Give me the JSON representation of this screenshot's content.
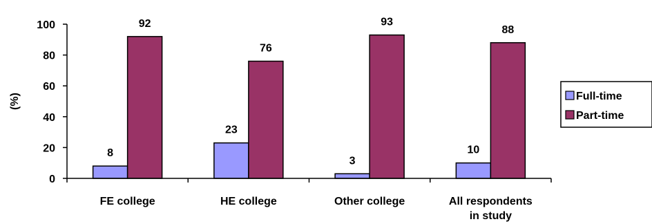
{
  "chart_data": {
    "type": "bar",
    "categories": [
      "FE college",
      "HE college",
      "Other college",
      "All respondents in study"
    ],
    "category_lines": [
      [
        "FE college"
      ],
      [
        "HE college"
      ],
      [
        "Other college"
      ],
      [
        "All respondents",
        "in study"
      ]
    ],
    "series": [
      {
        "name": "Full-time",
        "values": [
          8,
          23,
          3,
          10
        ],
        "color": "#9999ff"
      },
      {
        "name": "Part-time",
        "values": [
          92,
          76,
          93,
          88
        ],
        "color": "#993366"
      }
    ],
    "ylabel": "(%)",
    "ylim": [
      0,
      100
    ],
    "yticks": [
      0,
      20,
      40,
      60,
      80,
      100
    ],
    "grid": false,
    "legend": "right"
  }
}
